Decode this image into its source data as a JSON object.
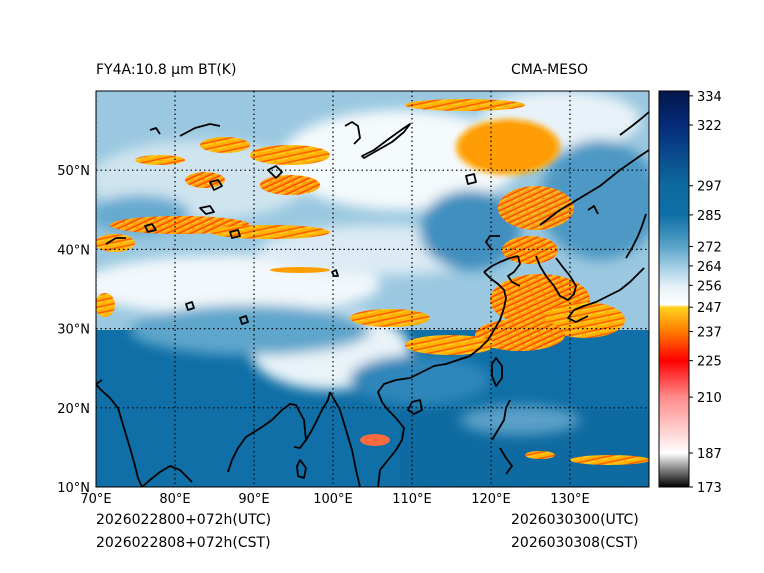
{
  "header": {
    "left_title": "FY4A:10.8 μm BT(K)",
    "right_title": "CMA-MESO"
  },
  "footer": {
    "init_utc": "2026022800+072h(UTC)",
    "init_cst": "2026022808+072h(CST)",
    "valid_utc": "2026030300(UTC)",
    "valid_cst": "2026030308(CST)"
  },
  "map": {
    "lon_ticks": [
      "70°E",
      "80°E",
      "90°E",
      "100°E",
      "110°E",
      "120°E",
      "130°E"
    ],
    "lat_ticks": [
      "10°N",
      "20°N",
      "30°N",
      "40°N",
      "50°N"
    ],
    "lon_values": [
      70,
      80,
      90,
      100,
      110,
      120,
      130
    ],
    "lat_values": [
      10,
      20,
      30,
      40,
      50
    ],
    "lon_range": [
      70,
      140
    ],
    "lat_range": [
      10,
      60
    ]
  },
  "colorbar": {
    "labels": [
      "334",
      "322",
      "297",
      "285",
      "272",
      "264",
      "256",
      "247",
      "237",
      "225",
      "210",
      "187",
      "173"
    ],
    "values": [
      334,
      322,
      297,
      285,
      272,
      264,
      256,
      247,
      237,
      225,
      210,
      187,
      173
    ],
    "range": [
      173,
      336
    ],
    "color_stops": [
      {
        "v": 173,
        "c": "#000000"
      },
      {
        "v": 187,
        "c": "#ffffff"
      },
      {
        "v": 210,
        "c": "#ff8a8a"
      },
      {
        "v": 225,
        "c": "#ff0000"
      },
      {
        "v": 230,
        "c": "#ff3300"
      },
      {
        "v": 237,
        "c": "#ff7b00"
      },
      {
        "v": 247,
        "c": "#ffd21e"
      },
      {
        "v": 248,
        "c": "#ffffff"
      },
      {
        "v": 256,
        "c": "#e3f0f7"
      },
      {
        "v": 264,
        "c": "#9fcbe3"
      },
      {
        "v": 272,
        "c": "#5aa3c9"
      },
      {
        "v": 285,
        "c": "#0e6fa6"
      },
      {
        "v": 297,
        "c": "#0f6aa1"
      },
      {
        "v": 322,
        "c": "#052b78"
      },
      {
        "v": 336,
        "c": "#03154a"
      }
    ]
  }
}
